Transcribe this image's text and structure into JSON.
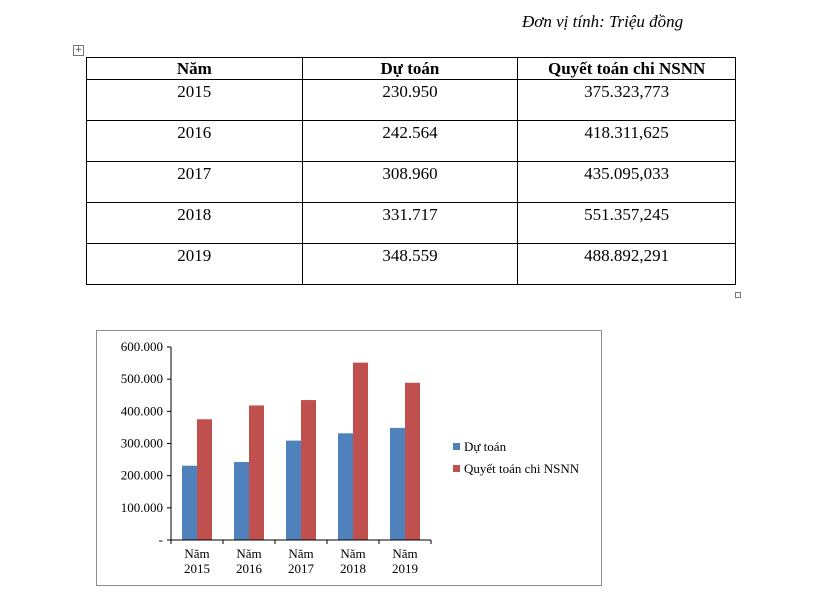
{
  "unit_note": "Đơn vị tính: Triệu đồng",
  "table": {
    "headers": [
      "Năm",
      "Dự toán",
      "Quyết toán chi NSNN"
    ],
    "rows": [
      [
        "2015",
        "230.950",
        "375.323,773"
      ],
      [
        "2016",
        "242.564",
        "418.311,625"
      ],
      [
        "2017",
        "308.960",
        "435.095,033"
      ],
      [
        "2018",
        "331.717",
        "551.357,245"
      ],
      [
        "2019",
        "348.559",
        "488.892,291"
      ]
    ]
  },
  "chart_data": {
    "type": "bar",
    "categories": [
      [
        "Năm",
        "2015"
      ],
      [
        "Năm",
        "2016"
      ],
      [
        "Năm",
        "2017"
      ],
      [
        "Năm",
        "2018"
      ],
      [
        "Năm",
        "2019"
      ]
    ],
    "series": [
      {
        "name": "Dự toán",
        "color": "#4f81bd",
        "values": [
          230950,
          242564,
          308960,
          331717,
          348559
        ]
      },
      {
        "name": "Quyết toán chi NSNN",
        "color": "#c0504d",
        "values": [
          375323.773,
          418311.625,
          435095.033,
          551357.245,
          488892.291
        ]
      }
    ],
    "ylim": [
      0,
      600000
    ],
    "yticks": [
      0,
      100000,
      200000,
      300000,
      400000,
      500000,
      600000
    ],
    "ytick_labels": [
      "-",
      "100.000",
      "200.000",
      "300.000",
      "400.000",
      "500.000",
      "600.000"
    ],
    "grid": false,
    "legend_position": "right"
  }
}
